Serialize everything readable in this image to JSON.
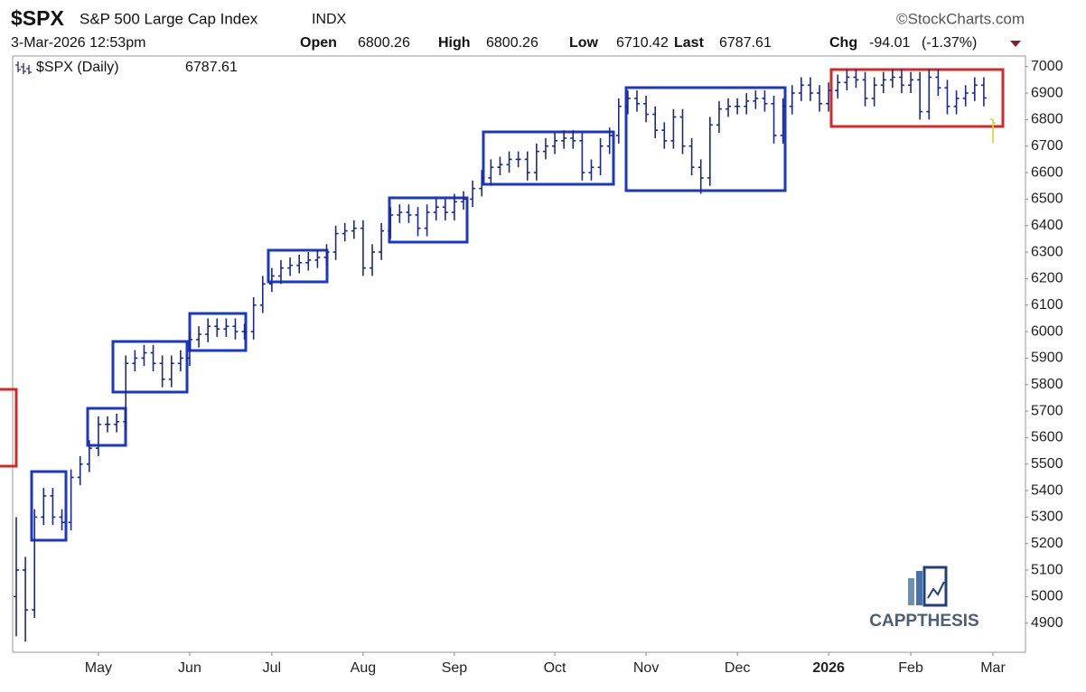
{
  "chart_data": {
    "type": "ohlc",
    "title": "$SPX",
    "subtitle": "S&P 500 Large Cap Index",
    "exchange": "INDX",
    "source": "©StockCharts.com",
    "timestamp": "3-Mar-2026 12:53pm",
    "quote": {
      "open_label": "Open",
      "open": 6800.26,
      "high_label": "High",
      "high": 6800.26,
      "low_label": "Low",
      "low": 6710.42,
      "last_label": "Last",
      "last": 6787.61,
      "change_label": "Chg",
      "change": -94.01,
      "change_pct": "(-1.37%)"
    },
    "legend_label": "$SPX (Daily)",
    "watermark": "CAPPTHESIS",
    "color": "#1c2a85",
    "last_color": "#d9d23a",
    "grid": false,
    "ylim": [
      4790,
      7040
    ],
    "yticks": [
      4900,
      5000,
      5100,
      5200,
      5300,
      5400,
      5500,
      5600,
      5700,
      5800,
      5900,
      6000,
      6100,
      6200,
      6300,
      6400,
      6500,
      6600,
      6700,
      6800,
      6900,
      7000
    ],
    "categories": [
      null,
      null,
      null,
      null,
      null,
      null,
      null,
      null,
      null,
      "May",
      null,
      null,
      null,
      null,
      null,
      null,
      null,
      null,
      null,
      "Jun",
      null,
      null,
      null,
      null,
      null,
      null,
      null,
      null,
      "Jul",
      null,
      null,
      null,
      null,
      null,
      null,
      null,
      null,
      null,
      "Aug",
      null,
      null,
      null,
      null,
      null,
      null,
      null,
      null,
      null,
      "Sep",
      null,
      null,
      null,
      null,
      null,
      null,
      null,
      null,
      null,
      null,
      "Oct",
      null,
      null,
      null,
      null,
      null,
      null,
      null,
      null,
      null,
      "Nov",
      null,
      null,
      null,
      null,
      null,
      null,
      null,
      null,
      null,
      "Dec",
      null,
      null,
      null,
      null,
      null,
      null,
      null,
      null,
      null,
      "2026",
      null,
      null,
      null,
      null,
      null,
      null,
      null,
      null,
      "Feb",
      null,
      null,
      null,
      null,
      null,
      null,
      null,
      null,
      "Mar"
    ],
    "open": [
      5000,
      5100,
      4950,
      5300,
      5380,
      5300,
      5280,
      5450,
      5500,
      5560,
      5650,
      5650,
      5660,
      5880,
      5900,
      5920,
      5880,
      5820,
      5880,
      5900,
      5970,
      5990,
      6020,
      6010,
      6020,
      6000,
      6000,
      6100,
      6180,
      6210,
      6240,
      6250,
      6260,
      6270,
      6280,
      6300,
      6370,
      6380,
      6390,
      6240,
      6300,
      6380,
      6440,
      6450,
      6440,
      6390,
      6450,
      6470,
      6450,
      6490,
      6500,
      6540,
      6580,
      6620,
      6630,
      6650,
      6650,
      6600,
      6680,
      6700,
      6720,
      6730,
      6720,
      6600,
      6620,
      6700,
      6740,
      6850,
      6880,
      6860,
      6820,
      6760,
      6720,
      6810,
      6700,
      6620,
      6580,
      6780,
      6840,
      6850,
      6850,
      6870,
      6880,
      6860,
      6740,
      6850,
      6900,
      6930,
      6900,
      6860,
      6910,
      6940,
      6960,
      6950,
      6880,
      6930,
      6950,
      6960,
      6930,
      6950,
      6830,
      6960,
      6920,
      6850,
      6880,
      6900,
      6930,
      6800.26
    ],
    "high": [
      5300,
      5150,
      5330,
      5410,
      5410,
      5330,
      5480,
      5530,
      5590,
      5680,
      5680,
      5690,
      5910,
      5930,
      5950,
      5950,
      5910,
      5910,
      5930,
      6000,
      6020,
      6050,
      6050,
      6050,
      6050,
      6030,
      6130,
      6210,
      6240,
      6270,
      6280,
      6290,
      6300,
      6310,
      6330,
      6400,
      6410,
      6420,
      6420,
      6330,
      6410,
      6470,
      6480,
      6480,
      6470,
      6480,
      6500,
      6500,
      6520,
      6530,
      6570,
      6610,
      6650,
      6660,
      6680,
      6680,
      6680,
      6710,
      6730,
      6750,
      6760,
      6760,
      6750,
      6650,
      6730,
      6770,
      6880,
      6910,
      6910,
      6890,
      6850,
      6790,
      6840,
      6840,
      6730,
      6650,
      6810,
      6870,
      6880,
      6880,
      6900,
      6910,
      6910,
      6890,
      6880,
      6930,
      6960,
      6960,
      6930,
      6940,
      6970,
      6990,
      6990,
      6980,
      6960,
      6980,
      6990,
      6990,
      6980,
      6980,
      6990,
      6990,
      6950,
      6910,
      6930,
      6960,
      6960,
      6800.26
    ],
    "low": [
      4850,
      4830,
      4920,
      5270,
      5270,
      5250,
      5250,
      5420,
      5470,
      5530,
      5620,
      5620,
      5630,
      5850,
      5870,
      5850,
      5790,
      5790,
      5850,
      5870,
      5940,
      5960,
      5980,
      5980,
      5970,
      5970,
      5970,
      6070,
      6150,
      6180,
      6210,
      6220,
      6230,
      6240,
      6250,
      6270,
      6340,
      6350,
      6210,
      6210,
      6270,
      6350,
      6410,
      6410,
      6360,
      6360,
      6420,
      6420,
      6420,
      6460,
      6470,
      6510,
      6550,
      6590,
      6600,
      6620,
      6570,
      6570,
      6650,
      6670,
      6690,
      6690,
      6570,
      6570,
      6590,
      6670,
      6710,
      6820,
      6830,
      6790,
      6730,
      6690,
      6690,
      6670,
      6590,
      6520,
      6550,
      6750,
      6810,
      6820,
      6820,
      6840,
      6830,
      6710,
      6710,
      6820,
      6870,
      6870,
      6830,
      6830,
      6880,
      6910,
      6920,
      6850,
      6850,
      6900,
      6920,
      6900,
      6900,
      6800,
      6800,
      6890,
      6820,
      6820,
      6850,
      6870,
      6850,
      6710.42
    ],
    "close": [
      5100,
      4950,
      5300,
      5380,
      5300,
      5280,
      5450,
      5500,
      5560,
      5650,
      5650,
      5660,
      5880,
      5900,
      5920,
      5880,
      5820,
      5880,
      5900,
      5970,
      5990,
      6020,
      6010,
      6020,
      6000,
      6000,
      6100,
      6180,
      6210,
      6240,
      6250,
      6260,
      6270,
      6280,
      6300,
      6370,
      6380,
      6390,
      6240,
      6300,
      6380,
      6440,
      6450,
      6440,
      6390,
      6450,
      6470,
      6450,
      6490,
      6500,
      6540,
      6580,
      6620,
      6630,
      6650,
      6650,
      6600,
      6680,
      6700,
      6720,
      6730,
      6720,
      6600,
      6620,
      6700,
      6740,
      6850,
      6880,
      6860,
      6820,
      6760,
      6720,
      6810,
      6700,
      6620,
      6580,
      6780,
      6840,
      6850,
      6850,
      6870,
      6880,
      6860,
      6740,
      6850,
      6900,
      6930,
      6900,
      6860,
      6910,
      6940,
      6960,
      6950,
      6880,
      6930,
      6950,
      6960,
      6930,
      6950,
      6830,
      6960,
      6920,
      6850,
      6880,
      6900,
      6930,
      6881.62,
      6787.61
    ]
  }
}
